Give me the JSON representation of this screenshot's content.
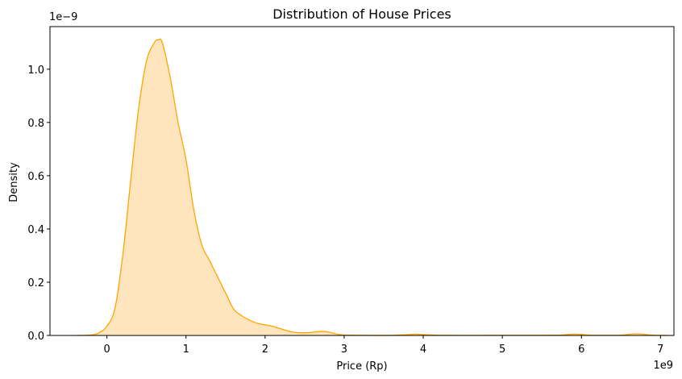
{
  "chart_data": {
    "type": "area",
    "title": "Distribution of House Prices",
    "xlabel": "Price (Rp)",
    "ylabel": "Density",
    "x_offset_label": "1e9",
    "y_offset_label": "1e−9",
    "xlim": [
      -0.72,
      7.17
    ],
    "ylim": [
      0,
      1.16
    ],
    "x_ticks": [
      0,
      1,
      2,
      3,
      4,
      5,
      6,
      7
    ],
    "x_tick_labels": [
      "0",
      "1",
      "2",
      "3",
      "4",
      "5",
      "6",
      "7"
    ],
    "y_ticks": [
      0.0,
      0.2,
      0.4,
      0.6,
      0.8,
      1.0
    ],
    "y_tick_labels": [
      "0.0",
      "0.2",
      "0.4",
      "0.6",
      "0.8",
      "1.0"
    ],
    "grid": false,
    "colors": {
      "line": "#FFA500",
      "fill": "#FFE5BE"
    },
    "series": [
      {
        "x": [
          -0.38,
          -0.2,
          -0.1,
          0.0,
          0.1,
          0.2,
          0.3,
          0.4,
          0.5,
          0.6,
          0.65,
          0.7,
          0.8,
          0.9,
          1.0,
          1.1,
          1.2,
          1.3,
          1.4,
          1.5,
          1.6,
          1.7,
          1.8,
          1.9,
          2.0,
          2.1,
          2.2,
          2.3,
          2.4,
          2.5,
          2.6,
          2.7,
          2.8,
          2.9,
          3.0,
          3.3,
          3.6,
          3.8,
          3.9,
          4.0,
          4.3,
          4.8,
          5.3,
          5.7,
          5.8,
          5.9,
          6.0,
          6.1,
          6.3,
          6.5,
          6.6,
          6.7,
          6.8,
          6.9,
          7.1
        ],
        "y": [
          0.0,
          0.002,
          0.01,
          0.035,
          0.1,
          0.3,
          0.58,
          0.85,
          1.03,
          1.1,
          1.11,
          1.1,
          0.97,
          0.8,
          0.66,
          0.47,
          0.34,
          0.28,
          0.22,
          0.16,
          0.1,
          0.075,
          0.058,
          0.046,
          0.04,
          0.034,
          0.025,
          0.016,
          0.011,
          0.01,
          0.012,
          0.015,
          0.013,
          0.006,
          0.002,
          0.0005,
          0.0005,
          0.003,
          0.005,
          0.003,
          0.0005,
          0.0005,
          0.0005,
          0.001,
          0.003,
          0.005,
          0.004,
          0.001,
          0.0005,
          0.001,
          0.004,
          0.006,
          0.004,
          0.001,
          0.0
        ]
      }
    ]
  }
}
